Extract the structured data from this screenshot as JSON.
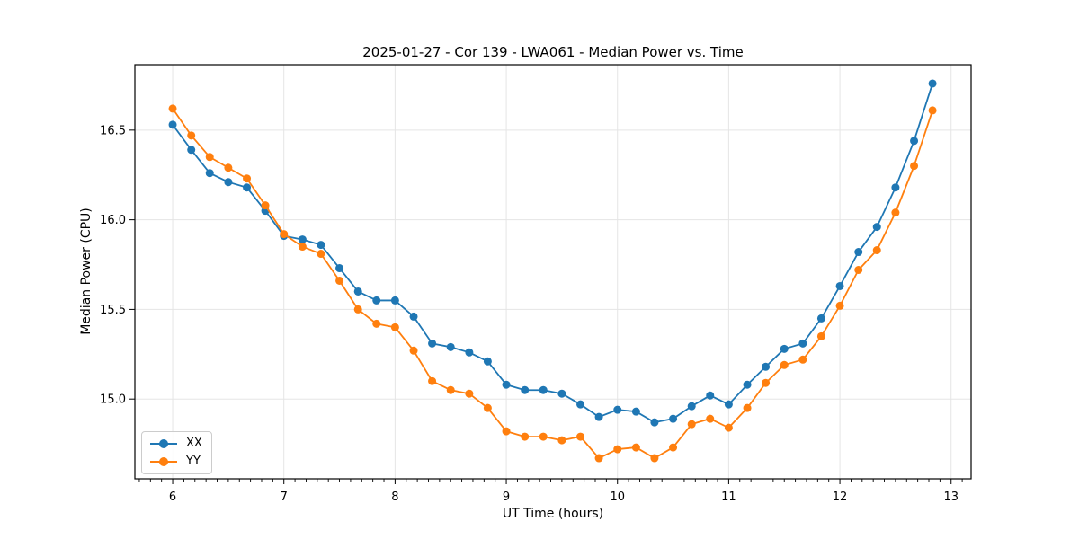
{
  "chart_data": {
    "type": "line",
    "title": "2025-01-27 - Cor 139 - LWA061 - Median Power vs. Time",
    "xlabel": "UT Time (hours)",
    "ylabel": "Median Power (CPU)",
    "x": [
      6.0,
      6.167,
      6.333,
      6.5,
      6.667,
      6.833,
      7.0,
      7.167,
      7.333,
      7.5,
      7.667,
      7.833,
      8.0,
      8.167,
      8.333,
      8.5,
      8.667,
      8.833,
      9.0,
      9.167,
      9.333,
      9.5,
      9.667,
      9.833,
      10.0,
      10.167,
      10.333,
      10.5,
      10.667,
      10.833,
      11.0,
      11.167,
      11.333,
      11.5,
      11.667,
      11.833,
      12.0,
      12.167,
      12.333,
      12.5,
      12.667,
      12.833
    ],
    "series": [
      {
        "name": "XX",
        "color": "#1f77b4",
        "values": [
          16.53,
          16.39,
          16.26,
          16.21,
          16.18,
          16.05,
          15.91,
          15.89,
          15.86,
          15.73,
          15.6,
          15.55,
          15.55,
          15.46,
          15.31,
          15.29,
          15.26,
          15.21,
          15.08,
          15.05,
          15.05,
          15.03,
          14.97,
          14.9,
          14.94,
          14.93,
          14.87,
          14.89,
          14.96,
          15.02,
          14.97,
          15.08,
          15.18,
          15.28,
          15.31,
          15.45,
          15.63,
          15.82,
          15.96,
          16.18,
          16.44,
          16.76
        ]
      },
      {
        "name": "YY",
        "color": "#ff7f0e",
        "values": [
          16.62,
          16.47,
          16.35,
          16.29,
          16.23,
          16.08,
          15.92,
          15.85,
          15.81,
          15.66,
          15.5,
          15.42,
          15.4,
          15.27,
          15.1,
          15.05,
          15.03,
          14.95,
          14.82,
          14.79,
          14.79,
          14.77,
          14.79,
          14.67,
          14.72,
          14.73,
          14.67,
          14.73,
          14.86,
          14.89,
          14.84,
          14.95,
          15.09,
          15.19,
          15.22,
          15.35,
          15.52,
          15.72,
          15.83,
          16.04,
          16.3,
          16.61
        ]
      }
    ],
    "xlim": [
      5.66,
      13.18
    ],
    "ylim": [
      14.555,
      16.865
    ],
    "xticks": [
      6,
      7,
      8,
      9,
      10,
      11,
      12,
      13
    ],
    "xtick_labels": [
      "6",
      "7",
      "8",
      "9",
      "10",
      "11",
      "12",
      "13"
    ],
    "x_minor_step": 0.1,
    "yticks": [
      15.0,
      15.5,
      16.0,
      16.5
    ],
    "ytick_labels": [
      "15.0",
      "15.5",
      "16.0",
      "16.5"
    ],
    "grid": true,
    "legend_position": "lower-left",
    "marker": "circle"
  },
  "colors": {
    "background": "#ffffff",
    "grid": "#e5e5e5",
    "axis": "#000000",
    "text": "#000000"
  }
}
